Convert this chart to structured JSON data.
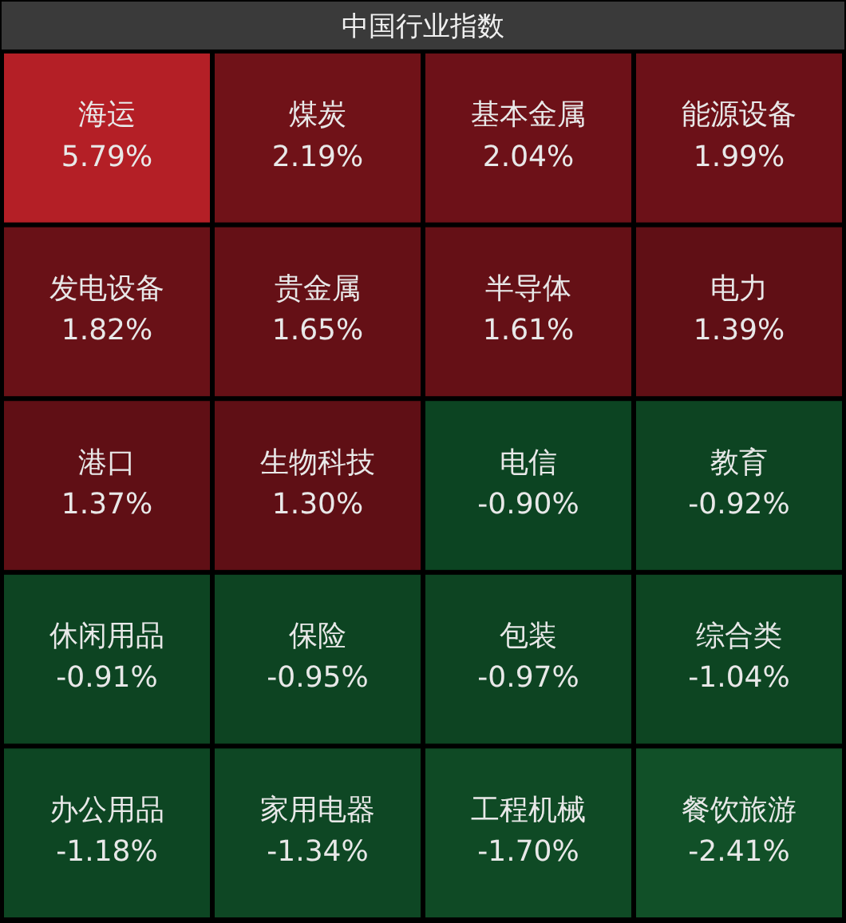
{
  "chart_data": {
    "type": "other",
    "title": "中国行业指数",
    "categories": [
      "海运",
      "煤炭",
      "基本金属",
      "能源设备",
      "发电设备",
      "贵金属",
      "半导体",
      "电力",
      "港口",
      "生物科技",
      "电信",
      "教育",
      "休闲用品",
      "保险",
      "包装",
      "综合类",
      "办公用品",
      "家用电器",
      "工程机械",
      "餐饮旅游"
    ],
    "values": [
      5.79,
      2.19,
      2.04,
      1.99,
      1.82,
      1.65,
      1.61,
      1.39,
      1.37,
      1.3,
      -0.9,
      -0.92,
      -0.91,
      -0.95,
      -0.97,
      -1.04,
      -1.18,
      -1.34,
      -1.7,
      -2.41
    ],
    "value_labels": [
      "5.79%",
      "2.19%",
      "2.04%",
      "1.99%",
      "1.82%",
      "1.65%",
      "1.61%",
      "1.39%",
      "1.37%",
      "1.30%",
      "-0.90%",
      "-0.92%",
      "-0.91%",
      "-0.95%",
      "-0.97%",
      "-1.04%",
      "-1.18%",
      "-1.34%",
      "-1.70%",
      "-2.41%"
    ]
  }
}
